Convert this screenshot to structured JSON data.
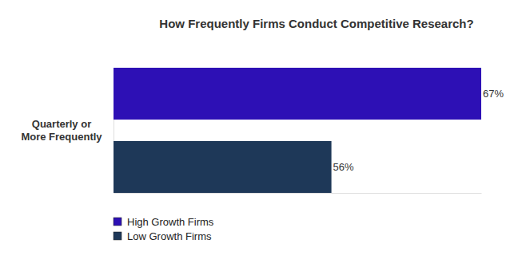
{
  "chart_data": {
    "type": "bar",
    "orientation": "horizontal",
    "title": "How Frequently Firms Conduct Competitive Research?",
    "categories": [
      "Quarterly or More Frequently"
    ],
    "series": [
      {
        "name": "High Growth Firms",
        "color": "#2d10b5",
        "values": [
          67
        ],
        "value_labels": [
          "67%"
        ]
      },
      {
        "name": "Low Growth Firms",
        "color": "#1e3858",
        "values": [
          56
        ],
        "value_labels": [
          "56%"
        ]
      }
    ],
    "xlim": [
      40,
      67
    ],
    "xticks": [],
    "data_labels": true,
    "tick_labels": "y",
    "legend": "bottom-left",
    "grid": false
  }
}
